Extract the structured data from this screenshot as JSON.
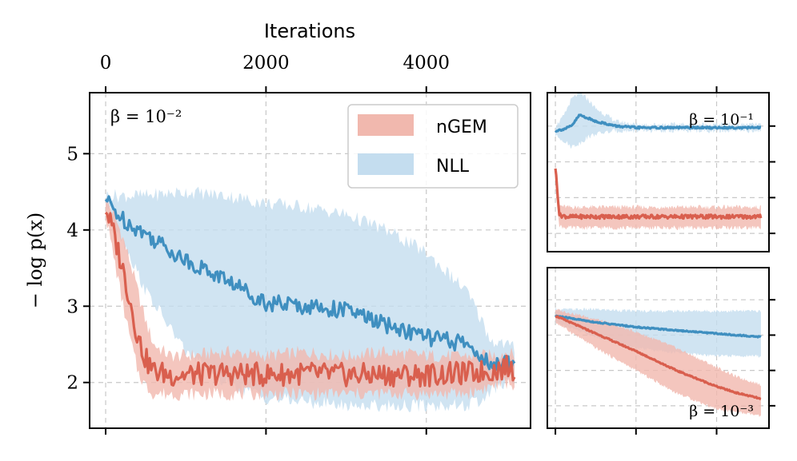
{
  "chart_data": [
    {
      "type": "line",
      "panel": "main",
      "xlabel": "Iterations",
      "ylabel": "− log  p(x)",
      "xlim": [
        -200,
        5300
      ],
      "ylim": [
        1.4,
        5.8
      ],
      "x_ticks": [
        0,
        2000,
        4000
      ],
      "x_tick_labels": [
        "0",
        "2000",
        "4000"
      ],
      "y_ticks": [
        2,
        3,
        4,
        5
      ],
      "y_tick_labels": [
        "2",
        "3",
        "4",
        "5"
      ],
      "grid": true,
      "annotation": "β = 10⁻²",
      "legend": {
        "placement": "top-right",
        "entries": [
          "nGEM",
          "NLL"
        ]
      },
      "series": [
        {
          "name": "nGEM",
          "color": "#d95f4e",
          "band_color": "#f1b8ae",
          "x": [
            0,
            100,
            200,
            300,
            400,
            500,
            600,
            800,
            1000,
            1500,
            2000,
            2500,
            3000,
            3500,
            4000,
            4500,
            4800,
            5000,
            5100
          ],
          "mean": [
            4.3,
            3.95,
            3.55,
            3.1,
            2.6,
            2.3,
            2.15,
            2.1,
            2.1,
            2.12,
            2.1,
            2.12,
            2.1,
            2.1,
            2.1,
            2.12,
            2.15,
            2.2,
            2.15
          ],
          "upper": [
            4.4,
            4.2,
            3.95,
            3.6,
            3.2,
            2.8,
            2.5,
            2.35,
            2.35,
            2.4,
            2.35,
            2.4,
            2.35,
            2.4,
            2.35,
            2.35,
            2.35,
            2.4,
            2.35
          ],
          "lower": [
            4.2,
            3.65,
            3.1,
            2.6,
            2.15,
            1.95,
            1.85,
            1.85,
            1.85,
            1.85,
            1.85,
            1.85,
            1.85,
            1.85,
            1.85,
            1.85,
            1.95,
            2.0,
            1.95
          ]
        },
        {
          "name": "NLL",
          "color": "#3f8fc0",
          "band_color": "#c4ddef",
          "x": [
            0,
            200,
            500,
            1000,
            1500,
            2000,
            2500,
            3000,
            3500,
            4000,
            4500,
            4700,
            4800,
            5000,
            5100
          ],
          "mean": [
            4.4,
            4.15,
            3.95,
            3.6,
            3.35,
            3.05,
            3.0,
            2.95,
            2.75,
            2.6,
            2.5,
            2.35,
            2.2,
            2.25,
            2.3
          ],
          "upper": [
            4.45,
            4.45,
            4.45,
            4.5,
            4.45,
            4.35,
            4.3,
            4.2,
            4.0,
            3.7,
            3.2,
            2.8,
            2.55,
            2.5,
            2.45
          ],
          "lower": [
            4.35,
            3.9,
            3.2,
            2.4,
            2.0,
            1.8,
            1.75,
            1.7,
            1.7,
            1.7,
            1.7,
            1.75,
            1.9,
            2.0,
            2.05
          ]
        }
      ]
    },
    {
      "type": "line",
      "panel": "top-right",
      "xlim": [
        -200,
        5300
      ],
      "ylim": [
        0.0,
        1.0
      ],
      "annotation": "β = 10⁻¹",
      "grid": true,
      "series": [
        {
          "name": "nGEM",
          "color": "#d95f4e",
          "band_color": "#f1b8ae",
          "x": [
            0,
            50,
            100,
            300,
            1000,
            2000,
            3000,
            4000,
            5000,
            5100
          ],
          "mean": [
            0.53,
            0.38,
            0.23,
            0.22,
            0.22,
            0.22,
            0.22,
            0.22,
            0.22,
            0.22
          ],
          "upper": [
            0.56,
            0.45,
            0.29,
            0.28,
            0.28,
            0.28,
            0.28,
            0.28,
            0.28,
            0.28
          ],
          "lower": [
            0.5,
            0.3,
            0.16,
            0.15,
            0.15,
            0.15,
            0.15,
            0.15,
            0.15,
            0.15
          ]
        },
        {
          "name": "NLL",
          "color": "#3f8fc0",
          "band_color": "#c4ddef",
          "x": [
            0,
            200,
            400,
            600,
            800,
            1000,
            1500,
            2000,
            3000,
            4000,
            5000,
            5100
          ],
          "mean": [
            0.76,
            0.77,
            0.79,
            0.86,
            0.84,
            0.82,
            0.79,
            0.78,
            0.78,
            0.78,
            0.78,
            0.78
          ],
          "upper": [
            0.79,
            0.85,
            0.96,
            1.0,
            0.96,
            0.9,
            0.82,
            0.8,
            0.8,
            0.8,
            0.8,
            0.8
          ],
          "lower": [
            0.73,
            0.7,
            0.66,
            0.68,
            0.72,
            0.74,
            0.76,
            0.76,
            0.76,
            0.76,
            0.76,
            0.76
          ]
        }
      ]
    },
    {
      "type": "line",
      "panel": "bottom-right",
      "xlim": [
        -200,
        5300
      ],
      "ylim": [
        0.0,
        1.0
      ],
      "annotation": "β = 10⁻³",
      "grid": true,
      "series": [
        {
          "name": "nGEM",
          "color": "#d95f4e",
          "band_color": "#f1b8ae",
          "x": [
            0,
            1000,
            2000,
            3000,
            4000,
            4500,
            5000,
            5100
          ],
          "mean": [
            0.7,
            0.59,
            0.48,
            0.36,
            0.26,
            0.22,
            0.19,
            0.18
          ],
          "upper": [
            0.74,
            0.68,
            0.6,
            0.5,
            0.38,
            0.32,
            0.28,
            0.27
          ],
          "lower": [
            0.66,
            0.5,
            0.36,
            0.22,
            0.12,
            0.1,
            0.08,
            0.07
          ]
        },
        {
          "name": "NLL",
          "color": "#3f8fc0",
          "band_color": "#c4ddef",
          "x": [
            0,
            1000,
            2000,
            3000,
            4000,
            5000,
            5100
          ],
          "mean": [
            0.7,
            0.66,
            0.63,
            0.61,
            0.59,
            0.57,
            0.57
          ],
          "upper": [
            0.74,
            0.74,
            0.73,
            0.73,
            0.73,
            0.73,
            0.73
          ],
          "lower": [
            0.66,
            0.57,
            0.5,
            0.47,
            0.45,
            0.45,
            0.45
          ]
        }
      ]
    }
  ]
}
